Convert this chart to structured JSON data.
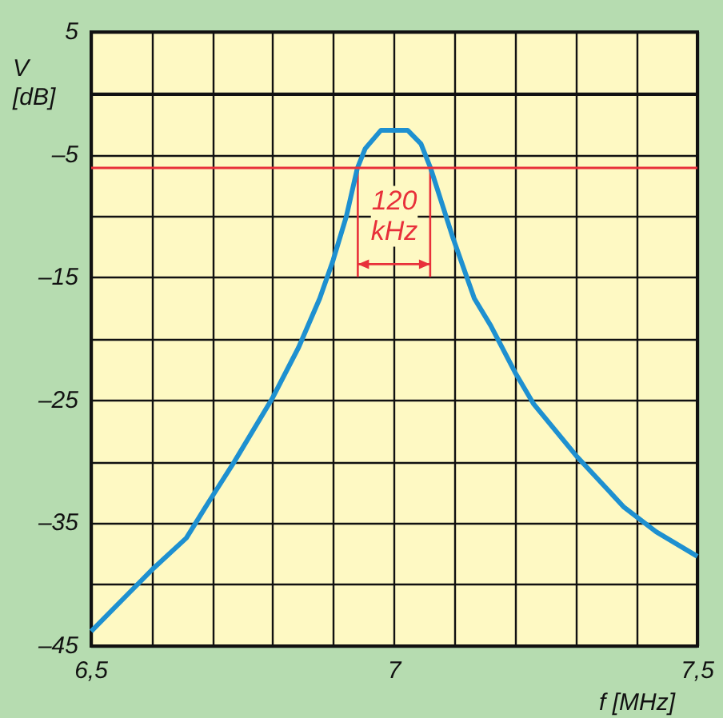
{
  "chart_data": {
    "type": "line",
    "xlabel": "f [MHz]",
    "ylabel": "V\n[dB]",
    "x": [
      6.5,
      6.56,
      6.6,
      6.657,
      6.696,
      6.736,
      6.798,
      6.842,
      6.877,
      6.899,
      6.921,
      6.939,
      6.952,
      6.978,
      7.022,
      7.044,
      7.06,
      7.097,
      7.132,
      7.159,
      7.199,
      7.23,
      7.3,
      7.379,
      7.432,
      7.5
    ],
    "series": [
      {
        "color": "#1e90d0",
        "values": [
          -43.8,
          -40.8,
          -38.8,
          -36.2,
          -33.1,
          -30.0,
          -24.9,
          -20.7,
          -16.7,
          -13.6,
          -10.0,
          -6.1,
          -4.5,
          -3,
          -3,
          -4.1,
          -6.1,
          -11.8,
          -16.7,
          -18.9,
          -22.7,
          -25.3,
          -29.5,
          -33.7,
          -35.7,
          -37.7
        ]
      }
    ],
    "xlim": [
      6.5,
      7.5
    ],
    "xticks": [
      {
        "value": 6.5,
        "label": "6,5"
      },
      {
        "value": 6.6,
        "label": null
      },
      {
        "value": 6.7,
        "label": null
      },
      {
        "value": 6.8,
        "label": null
      },
      {
        "value": 6.9,
        "label": null
      },
      7,
      {
        "value": 7.1,
        "label": null
      },
      {
        "value": 7.2,
        "label": null
      },
      {
        "value": 7.3,
        "label": null
      },
      {
        "value": 7.4,
        "label": null
      },
      {
        "value": 7.5,
        "label": "7,5"
      }
    ],
    "ylim": [
      -45,
      5
    ],
    "yticks": [
      5,
      {
        "value": 0,
        "label": null
      },
      {
        "value": -5,
        "label": "–5"
      },
      {
        "value": -10,
        "label": null
      },
      {
        "value": -15,
        "label": "–15"
      },
      {
        "value": -20,
        "label": null
      },
      {
        "value": -25,
        "label": "–25"
      },
      {
        "value": -30,
        "label": null
      },
      {
        "value": -35,
        "label": "–35"
      },
      {
        "value": -40,
        "label": null
      },
      {
        "value": -45,
        "label": "–45"
      }
    ],
    "ref_lines": [
      {
        "axis": "y",
        "value": -6,
        "color": "#e8303a"
      }
    ],
    "annotations": [
      {
        "text": "120\nkHz",
        "x": 7.0,
        "y": -10
      }
    ],
    "grid": true,
    "marker": "none",
    "line_style": "solid"
  }
}
